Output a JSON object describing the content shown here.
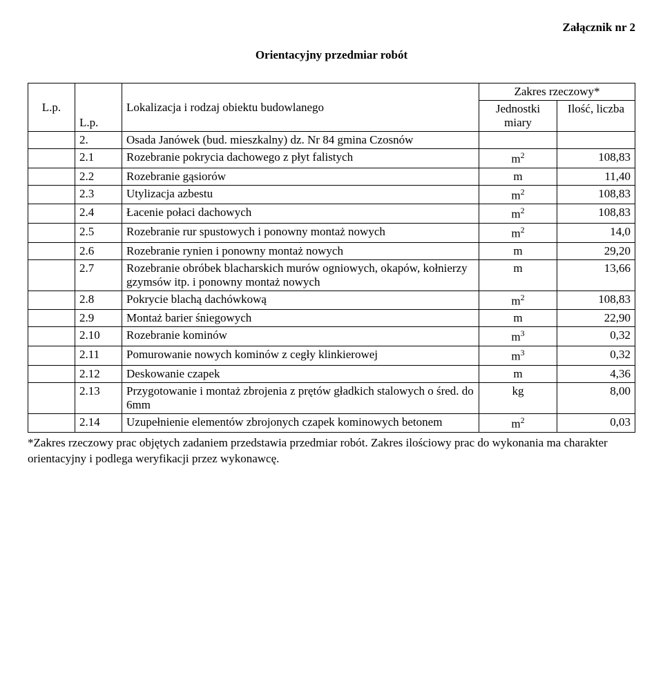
{
  "header": {
    "attachment": "Załącznik nr 2",
    "title": "Orientacyjny przedmiar robót"
  },
  "table": {
    "head": {
      "lp": "L.p.",
      "lp2": "L.p.",
      "desc": "Lokalizacja i rodzaj obiektu budowlanego",
      "scope": "Zakres rzeczowy*",
      "unit": "Jednostki miary",
      "qty": "Ilość, liczba"
    },
    "groupRow": {
      "num": "2.",
      "desc": "Osada Janówek (bud. mieszkalny) dz. Nr 84 gmina Czosnów"
    },
    "rows": [
      {
        "num": "2.1",
        "desc": "Rozebranie pokrycia dachowego z płyt falistych",
        "unit_base": "m",
        "unit_sup": "2",
        "qty": "108,83"
      },
      {
        "num": "2.2",
        "desc": "Rozebranie gąsiorów",
        "unit_base": "m",
        "unit_sup": "",
        "qty": "11,40"
      },
      {
        "num": "2.3",
        "desc": "Utylizacja azbestu",
        "unit_base": "m",
        "unit_sup": "2",
        "qty": "108,83"
      },
      {
        "num": "2.4",
        "desc": "Łacenie połaci dachowych",
        "unit_base": "m",
        "unit_sup": "2",
        "qty": "108,83"
      },
      {
        "num": "2.5",
        "desc": "Rozebranie rur spustowych i ponowny montaż nowych",
        "unit_base": "m",
        "unit_sup": "2",
        "qty": "14,0"
      },
      {
        "num": "2.6",
        "desc": "Rozebranie rynien i ponowny montaż nowych",
        "unit_base": "m",
        "unit_sup": "",
        "qty": "29,20"
      },
      {
        "num": "2.7",
        "desc": "Rozebranie obróbek blacharskich murów ogniowych, okapów, kołnierzy gzymsów itp. i ponowny montaż nowych",
        "unit_base": "m",
        "unit_sup": "",
        "qty": "13,66"
      },
      {
        "num": "2.8",
        "desc": "Pokrycie blachą dachówkową",
        "unit_base": "m",
        "unit_sup": "2",
        "qty": "108,83"
      },
      {
        "num": "2.9",
        "desc": "Montaż barier śniegowych",
        "unit_base": "m",
        "unit_sup": "",
        "qty": "22,90"
      },
      {
        "num": "2.10",
        "desc": "Rozebranie kominów",
        "unit_base": "m",
        "unit_sup": "3",
        "qty": "0,32"
      },
      {
        "num": "2.11",
        "desc": "Pomurowanie nowych kominów z cegły klinkierowej",
        "unit_base": "m",
        "unit_sup": "3",
        "qty": "0,32"
      },
      {
        "num": "2.12",
        "desc": "Deskowanie czapek",
        "unit_base": "m",
        "unit_sup": "",
        "qty": "4,36"
      },
      {
        "num": "2.13",
        "desc": "Przygotowanie i montaż zbrojenia z prętów gładkich stalowych o śred. do 6mm",
        "unit_base": "kg",
        "unit_sup": "",
        "qty": "8,00"
      },
      {
        "num": "2.14",
        "desc": "Uzupełnienie elementów zbrojonych czapek kominowych betonem",
        "unit_base": "m",
        "unit_sup": "2",
        "qty": "0,03"
      }
    ]
  },
  "footnote": "*Zakres rzeczowy prac  objętych zadaniem przedstawia przedmiar robót. Zakres ilościowy prac do wykonania ma charakter orientacyjny i podlega weryfikacji przez wykonawcę."
}
